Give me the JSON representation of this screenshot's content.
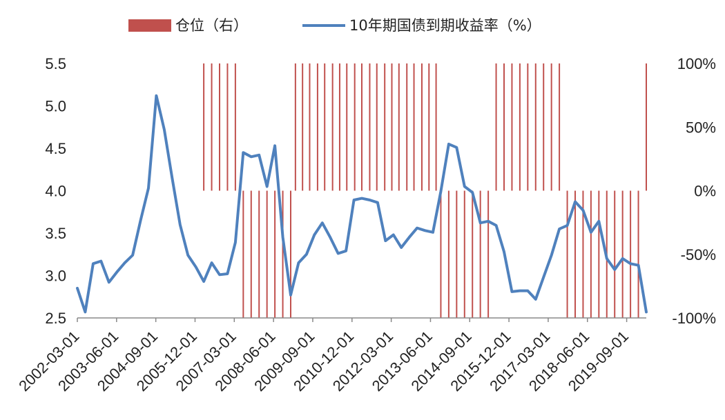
{
  "chart_data": {
    "type": "line",
    "legend": {
      "placement": "top-center",
      "items": [
        {
          "label": "仓位（右）",
          "kind": "bar",
          "color": "#c0504d"
        },
        {
          "label": "10年期国债到期收益率（%）",
          "kind": "line",
          "color": "#4f81bd"
        }
      ]
    },
    "x_tick_labels": [
      "2002-03-01",
      "2003-06-01",
      "2004-09-01",
      "2005-12-01",
      "2007-03-01",
      "2008-06-01",
      "2009-09-01",
      "2010-12-01",
      "2012-03-01",
      "2013-06-01",
      "2014-09-01",
      "2015-12-01",
      "2017-03-01",
      "2018-06-01",
      "2019-09-01"
    ],
    "y_left": {
      "ylim": [
        2.5,
        5.5
      ],
      "ticks": [
        "5.5",
        "5.0",
        "4.5",
        "4.0",
        "3.5",
        "3.0",
        "2.5"
      ],
      "tick_values": [
        5.5,
        5.0,
        4.5,
        4.0,
        3.5,
        3.0,
        2.5
      ]
    },
    "y_right": {
      "ylim": [
        -100,
        100
      ],
      "ticks": [
        "100%",
        "50%",
        "0%",
        "-50%",
        "-100%"
      ],
      "tick_values": [
        100,
        50,
        0,
        -50,
        -100
      ]
    },
    "x_index_range": [
      0,
      72
    ],
    "series": [
      {
        "name": "10年期国债到期收益率（%）",
        "axis": "left",
        "color": "#4f81bd",
        "x": [
          0,
          1,
          2,
          3,
          4,
          5,
          6,
          7,
          8,
          9,
          10,
          11,
          12,
          13,
          14,
          15,
          16,
          17,
          18,
          19,
          20,
          21,
          22,
          23,
          24,
          25,
          26,
          27,
          28,
          29,
          30,
          31,
          32,
          33,
          34,
          35,
          36,
          37,
          38,
          39,
          40,
          41,
          42,
          43,
          44,
          45,
          46,
          47,
          48,
          49,
          50,
          51,
          52,
          53,
          54,
          55,
          56,
          57,
          58,
          59,
          60,
          61,
          62,
          63,
          64,
          65,
          66,
          67,
          68,
          69,
          70,
          71,
          72
        ],
        "values": [
          2.85,
          2.57,
          3.14,
          3.17,
          2.92,
          3.04,
          3.15,
          3.24,
          3.65,
          4.03,
          5.12,
          4.72,
          4.15,
          3.6,
          3.24,
          3.1,
          2.93,
          3.15,
          3.01,
          3.02,
          3.39,
          4.45,
          4.4,
          4.42,
          4.05,
          4.53,
          3.45,
          2.77,
          3.15,
          3.25,
          3.48,
          3.62,
          3.45,
          3.26,
          3.29,
          3.89,
          3.91,
          3.89,
          3.86,
          3.41,
          3.48,
          3.33,
          3.45,
          3.56,
          3.53,
          3.51,
          3.99,
          4.55,
          4.51,
          4.05,
          3.98,
          3.62,
          3.64,
          3.59,
          3.28,
          2.81,
          2.82,
          2.82,
          2.72,
          2.98,
          3.24,
          3.55,
          3.59,
          3.87,
          3.77,
          3.51,
          3.64,
          3.2,
          3.07,
          3.2,
          3.14,
          3.12,
          2.57
        ]
      },
      {
        "name": "仓位（右）",
        "axis": "right",
        "type": "bar",
        "color": "#c0504d",
        "x": [
          16,
          17,
          18,
          19,
          20,
          21,
          22,
          23,
          24,
          25,
          26,
          27,
          27.6,
          28.5,
          29.4,
          30.4,
          31.3,
          32.3,
          33.2,
          34.1,
          35.1,
          36.0,
          37.0,
          37.9,
          38.9,
          39.8,
          40.7,
          41.7,
          42.6,
          43.6,
          44.5,
          45.4,
          46,
          47,
          48,
          49,
          50,
          51,
          52,
          53,
          54,
          55,
          56,
          57,
          58,
          59,
          60,
          61,
          62,
          63,
          64,
          65,
          66,
          67,
          68,
          69,
          70,
          71,
          72
        ],
        "values": [
          100,
          100,
          100,
          100,
          100,
          -100,
          -100,
          -100,
          -100,
          -100,
          -100,
          -100,
          100,
          100,
          100,
          100,
          100,
          100,
          100,
          100,
          100,
          100,
          100,
          100,
          100,
          100,
          100,
          100,
          100,
          100,
          100,
          100,
          -100,
          -100,
          -100,
          -100,
          -100,
          -100,
          -100,
          100,
          100,
          100,
          100,
          100,
          100,
          100,
          100,
          100,
          -100,
          -100,
          -100,
          -100,
          -100,
          -100,
          -100,
          -100,
          -100,
          -100,
          100
        ]
      }
    ]
  }
}
